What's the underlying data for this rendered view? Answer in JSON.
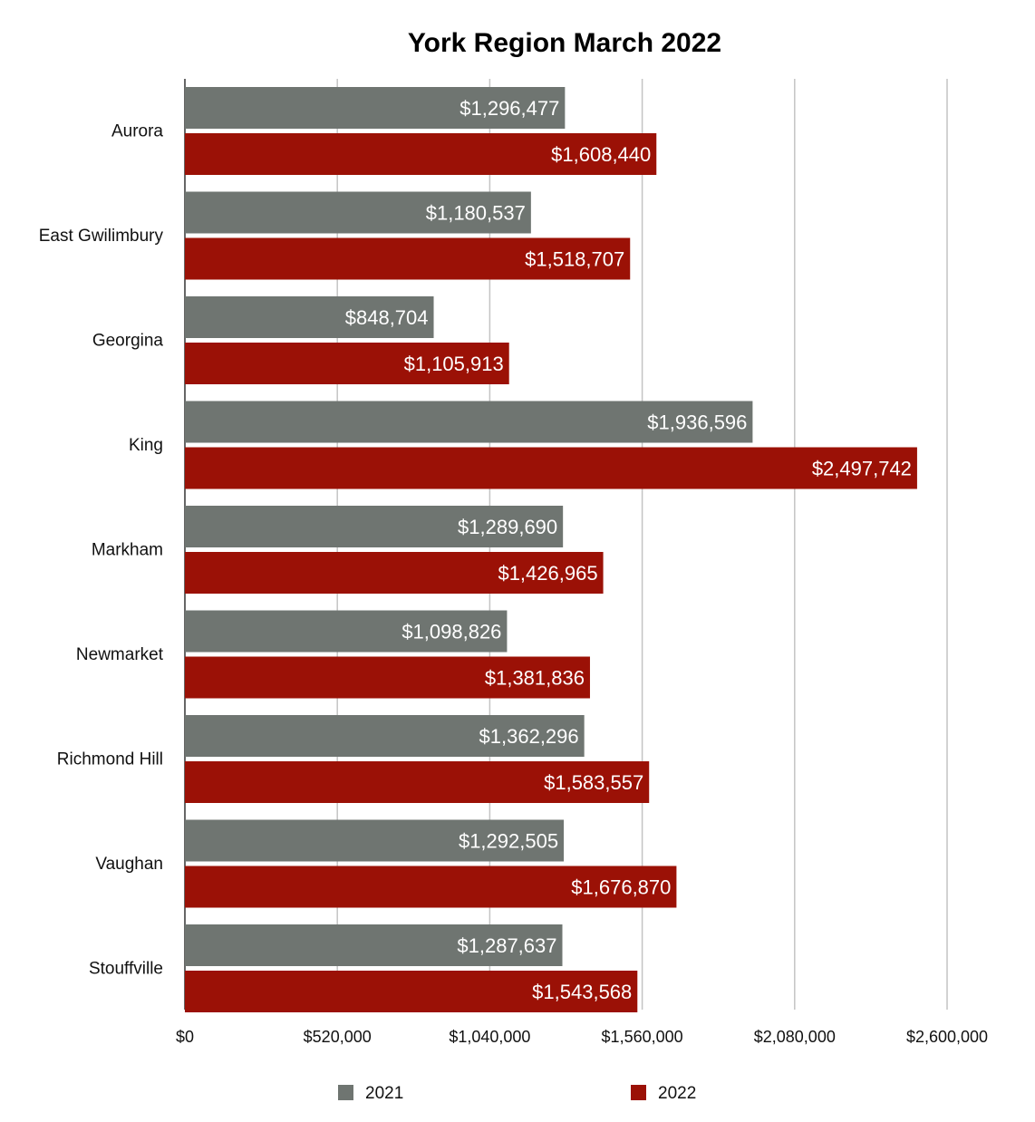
{
  "chart_data": {
    "type": "bar",
    "orientation": "horizontal",
    "title": "York Region March 2022",
    "xlabel": "",
    "ylabel": "",
    "categories": [
      "Aurora",
      "East Gwilimbury",
      "Georgina",
      "King",
      "Markham",
      "Newmarket",
      "Richmond Hill",
      "Vaughan",
      "Stouffville"
    ],
    "series": [
      {
        "name": "2021",
        "color": "#6f7571",
        "values": [
          1296477,
          1180537,
          848704,
          1936596,
          1289690,
          1098826,
          1362296,
          1292505,
          1287637
        ],
        "labels": [
          "$1,296,477",
          "$1,180,537",
          "$848,704",
          "$1,936,596",
          "$1,289,690",
          "$1,098,826",
          "$1,362,296",
          "$1,292,505",
          "$1,287,637"
        ]
      },
      {
        "name": "2022",
        "color": "#9b1106",
        "values": [
          1608440,
          1518707,
          1105913,
          2497742,
          1426965,
          1381836,
          1583557,
          1676870,
          1543568
        ],
        "labels": [
          "$1,608,440",
          "$1,518,707",
          "$1,105,913",
          "$2,497,742",
          "$1,426,965",
          "$1,381,836",
          "$1,583,557",
          "$1,676,870",
          "$1,543,568"
        ]
      }
    ],
    "xlim": [
      0,
      2600000
    ],
    "ticks": [
      0,
      520000,
      1040000,
      1560000,
      2080000,
      2600000
    ],
    "tick_labels": [
      "$0",
      "$520,000",
      "$1,040,000",
      "$1,560,000",
      "$2,080,000",
      "$2,600,000"
    ],
    "grid": true,
    "legend": "bottom"
  }
}
